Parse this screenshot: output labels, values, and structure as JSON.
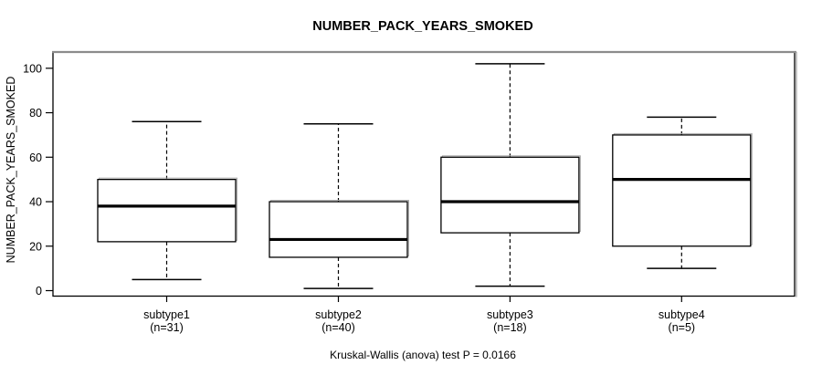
{
  "chart_data": {
    "type": "boxplot",
    "title": "NUMBER_PACK_YEARS_SMOKED",
    "ylabel": "NUMBER_PACK_YEARS_SMOKED",
    "xlabel": "",
    "ylim": [
      0,
      100
    ],
    "y_ticks": [
      0,
      20,
      40,
      60,
      80,
      100
    ],
    "grid": false,
    "legend": false,
    "categories": [
      "subtype1",
      "subtype2",
      "subtype3",
      "subtype4"
    ],
    "count_labels": [
      "(n=31)",
      "(n=40)",
      "(n=18)",
      "(n=5)"
    ],
    "series": [
      {
        "name": "subtype1",
        "n": 31,
        "whisker_low": 5,
        "q1": 22,
        "median": 38,
        "q3": 50,
        "whisker_high": 76,
        "outliers": []
      },
      {
        "name": "subtype2",
        "n": 40,
        "whisker_low": 1,
        "q1": 15,
        "median": 23,
        "q3": 40,
        "whisker_high": 75,
        "outliers": []
      },
      {
        "name": "subtype3",
        "n": 18,
        "whisker_low": 2,
        "q1": 26,
        "median": 40,
        "q3": 60,
        "whisker_high": 102,
        "outliers": []
      },
      {
        "name": "subtype4",
        "n": 5,
        "whisker_low": 10,
        "q1": 20,
        "median": 50,
        "q3": 70,
        "whisker_high": 78,
        "outliers": []
      }
    ],
    "annotation": "Kruskal-Wallis (anova) test P = 0.0166",
    "colors": {
      "box_stroke": "#000000",
      "box_fill": "#ffffff",
      "median": "#000000",
      "frame": "#000000",
      "frame_top": "#8c8c8c",
      "shadow": "#aaaaaa",
      "background": "#ffffff",
      "text": "#000000"
    }
  }
}
